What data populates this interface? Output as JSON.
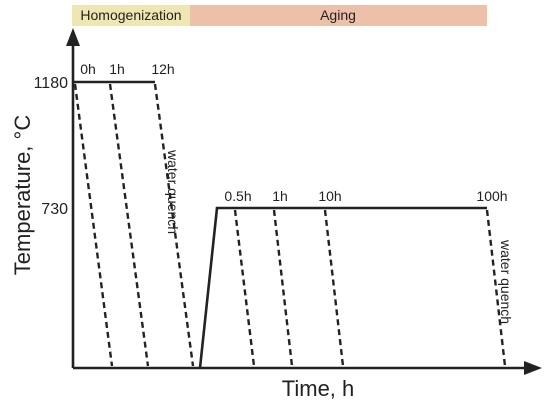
{
  "stages": {
    "homogenization": "Homogenization",
    "aging": "Aging"
  },
  "axes": {
    "y_label": "Temperature, °C",
    "x_label": "Time, h",
    "y_levels": [
      "1180",
      "730"
    ]
  },
  "homogenization_times": [
    "0h",
    "1h",
    "12h"
  ],
  "aging_times": [
    "0.5h",
    "1h",
    "10h",
    "100h"
  ],
  "quench_labels": [
    "water quench",
    "water quench"
  ]
}
